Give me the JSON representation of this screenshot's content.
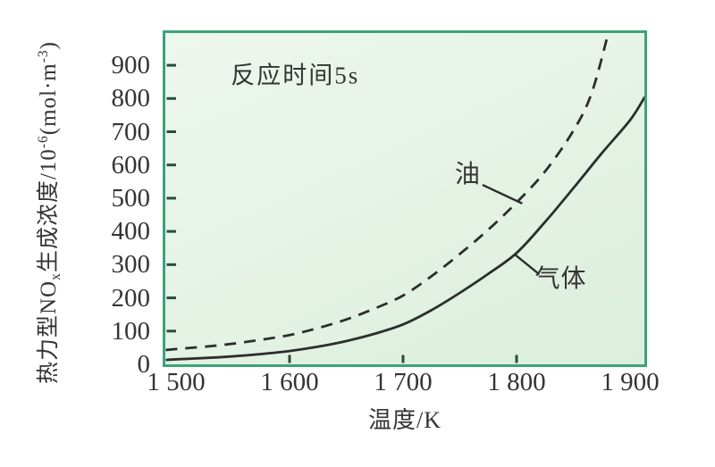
{
  "colors": {
    "canvas_bg": "#ffffff",
    "plot_bg": "#e4f2e4",
    "plot_border": "#3ba377",
    "curve": "#2c2e2c",
    "tick_mark": "#2b4c3d",
    "text": "#343434"
  },
  "chart_data": {
    "type": "line",
    "title": "",
    "annotation": {
      "text": "反应时间5s",
      "x": 1605,
      "y": 876
    },
    "xlabel": "温度/K",
    "ylabel": "热力型NOₓ生成浓度/10⁻⁶(mol·m⁻³)",
    "ylabel_parts": [
      {
        "t": "热力型NO"
      },
      {
        "t": "x",
        "s": "sub"
      },
      {
        "t": "生成浓度/10"
      },
      {
        "t": "-6",
        "s": "sup"
      },
      {
        "t": "(mol·m"
      },
      {
        "t": "-3",
        "s": "sup"
      },
      {
        "t": ")"
      }
    ],
    "xlim": [
      1490.6,
      1912.6
    ],
    "ylim": [
      0,
      997
    ],
    "grid": false,
    "legend_position": "inline-labels",
    "x_ticks": [
      {
        "value": 1500,
        "label": "1 500"
      },
      {
        "value": 1600,
        "label": "1 600"
      },
      {
        "value": 1700,
        "label": "1 700"
      },
      {
        "value": 1800,
        "label": "1 800"
      },
      {
        "value": 1900,
        "label": "1 900"
      }
    ],
    "x_tick_marks": [
      1600,
      1700,
      1800
    ],
    "y_ticks": [
      {
        "value": 0,
        "label": "0"
      },
      {
        "value": 100,
        "label": "100"
      },
      {
        "value": 200,
        "label": "200"
      },
      {
        "value": 300,
        "label": "300"
      },
      {
        "value": 400,
        "label": "400"
      },
      {
        "value": 500,
        "label": "500"
      },
      {
        "value": 600,
        "label": "600"
      },
      {
        "value": 700,
        "label": "700"
      },
      {
        "value": 800,
        "label": "800"
      },
      {
        "value": 900,
        "label": "900"
      }
    ],
    "y_tick_marks": [
      100,
      200,
      300,
      400,
      500,
      600,
      700,
      800,
      900
    ],
    "series": [
      {
        "id": "oil",
        "name": "油",
        "line_style": "dashed",
        "points": [
          [
            1491,
            43
          ],
          [
            1500,
            46
          ],
          [
            1525,
            53
          ],
          [
            1550,
            62
          ],
          [
            1575,
            74
          ],
          [
            1600,
            88
          ],
          [
            1625,
            109
          ],
          [
            1650,
            135
          ],
          [
            1675,
            168
          ],
          [
            1700,
            207
          ],
          [
            1725,
            265
          ],
          [
            1750,
            332
          ],
          [
            1775,
            405
          ],
          [
            1800,
            487
          ],
          [
            1825,
            580
          ],
          [
            1850,
            703
          ],
          [
            1866,
            815
          ],
          [
            1881,
            1000
          ],
          [
            1887,
            1090
          ]
        ],
        "label": {
          "text": "油",
          "x": 1757,
          "y": 578,
          "leader": [
            [
              1770,
              540
            ],
            [
              1805,
              484
            ]
          ]
        }
      },
      {
        "id": "gas",
        "name": "气体",
        "line_style": "solid",
        "points": [
          [
            1491,
            13
          ],
          [
            1500,
            15
          ],
          [
            1525,
            19
          ],
          [
            1550,
            24
          ],
          [
            1575,
            31
          ],
          [
            1600,
            40
          ],
          [
            1625,
            53
          ],
          [
            1650,
            70
          ],
          [
            1675,
            92
          ],
          [
            1700,
            120
          ],
          [
            1725,
            163
          ],
          [
            1750,
            215
          ],
          [
            1775,
            272
          ],
          [
            1800,
            335
          ],
          [
            1825,
            428
          ],
          [
            1850,
            530
          ],
          [
            1875,
            635
          ],
          [
            1900,
            735
          ],
          [
            1913,
            805
          ]
        ],
        "label": {
          "text": "气体",
          "x": 1839,
          "y": 263,
          "leader": [
            [
              1799,
              329
            ],
            [
              1820,
              271
            ]
          ]
        }
      }
    ]
  }
}
